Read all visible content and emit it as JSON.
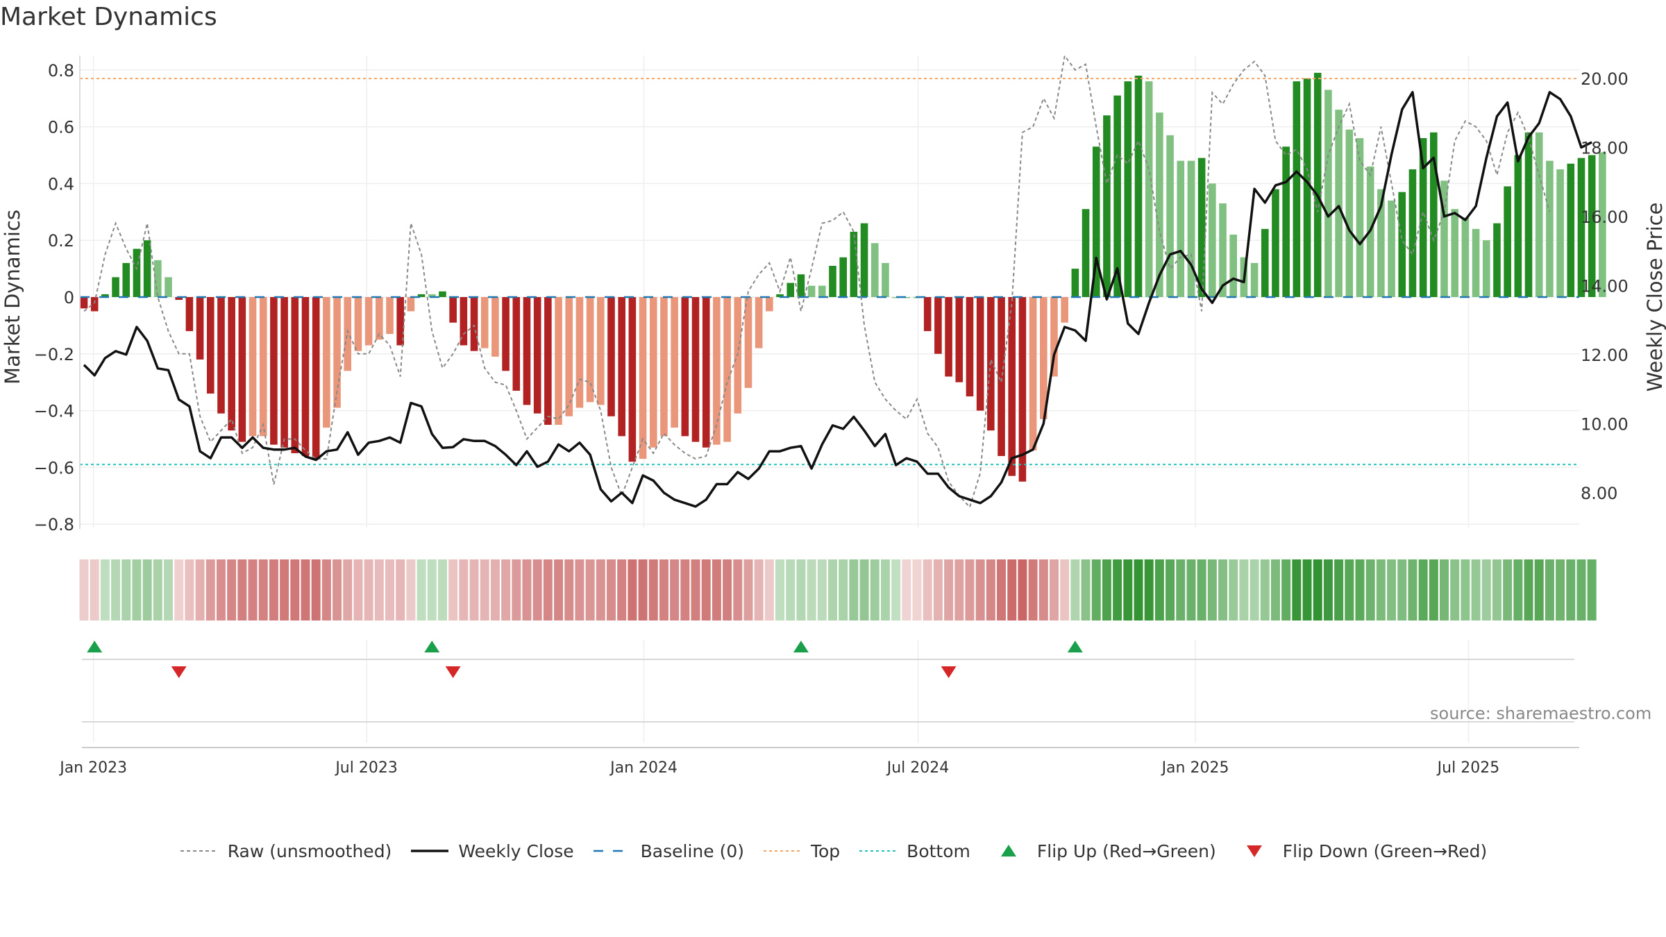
{
  "title": "Market Dynamics",
  "source": "source: sharemaestro.com",
  "colors": {
    "dark_green": "#228b22",
    "light_green": "#80c080",
    "dark_red": "#b22222",
    "light_red": "#e9967a",
    "weekly_close": "#111111",
    "raw": "#888888",
    "baseline": "#1f77b4",
    "top": "#f4a460",
    "bottom": "#20c0c0",
    "flip_up": "#1aa04a",
    "flip_down": "#d62728",
    "grid": "#eeeeee"
  },
  "legend": [
    {
      "label": "Raw (unsmoothed)",
      "style": "dashed-grey"
    },
    {
      "label": "Weekly Close",
      "style": "solid-black"
    },
    {
      "label": "Baseline (0)",
      "style": "dashed-blue"
    },
    {
      "label": "Top",
      "style": "dotted-orange"
    },
    {
      "label": "Bottom",
      "style": "dotted-cyan"
    },
    {
      "label": "Flip Up (Red→Green)",
      "style": "triangle-up-green"
    },
    {
      "label": "Flip Down (Green→Red)",
      "style": "triangle-down-red"
    }
  ],
  "chart_data": {
    "type": "bar",
    "title": "Market Dynamics",
    "ylabel": "Market Dynamics",
    "y2label": "Weekly Close Price",
    "ylim": [
      -0.92,
      0.85
    ],
    "y2lim": [
      6.7,
      20.6
    ],
    "yticks": [
      "0.8",
      "0.6",
      "0.4",
      "0.2",
      "0",
      "−0.2",
      "−0.4",
      "−0.6",
      "−0.8"
    ],
    "y2ticks": [
      "20.00",
      "18.00",
      "16.00",
      "14.00",
      "12.00",
      "10.00",
      "8.00"
    ],
    "xticks": [
      {
        "label": "Jan 2023",
        "week": 0.9
      },
      {
        "label": "Jul 2023",
        "week": 26.8
      },
      {
        "label": "Jan 2024",
        "week": 53.1
      },
      {
        "label": "Jul 2024",
        "week": 79.1
      },
      {
        "label": "Jan 2025",
        "week": 105.4
      },
      {
        "label": "Jul 2025",
        "week": 131.3
      }
    ],
    "top_level": 0.77,
    "bottom_level": -0.59,
    "baseline": 0,
    "grid": true,
    "legend_position": "bottom",
    "bar_shades_note": "dark = momentum strengthening, light = weakening",
    "values": [
      -0.04,
      -0.05,
      0.01,
      0.07,
      0.12,
      0.17,
      0.2,
      0.13,
      0.07,
      -0.01,
      -0.12,
      -0.22,
      -0.34,
      -0.41,
      -0.47,
      -0.51,
      -0.49,
      -0.49,
      -0.52,
      -0.53,
      -0.55,
      -0.56,
      -0.57,
      -0.46,
      -0.39,
      -0.26,
      -0.19,
      -0.17,
      -0.15,
      -0.13,
      -0.17,
      -0.05,
      0.01,
      0.01,
      0.02,
      -0.09,
      -0.17,
      -0.19,
      -0.18,
      -0.21,
      -0.26,
      -0.33,
      -0.38,
      -0.41,
      -0.45,
      -0.45,
      -0.42,
      -0.39,
      -0.37,
      -0.38,
      -0.42,
      -0.49,
      -0.58,
      -0.57,
      -0.53,
      -0.49,
      -0.46,
      -0.49,
      -0.51,
      -0.53,
      -0.52,
      -0.51,
      -0.41,
      -0.32,
      -0.18,
      -0.05,
      0.01,
      0.05,
      0.08,
      0.04,
      0.04,
      0.11,
      0.14,
      0.23,
      0.26,
      0.19,
      0.12,
      0,
      0,
      0,
      -0.12,
      -0.2,
      -0.28,
      -0.3,
      -0.35,
      -0.4,
      -0.47,
      -0.56,
      -0.63,
      -0.65,
      -0.54,
      -0.43,
      -0.28,
      -0.09,
      0.1,
      0.31,
      0.53,
      0.64,
      0.71,
      0.76,
      0.78,
      0.76,
      0.65,
      0.57,
      0.48,
      0.48,
      0.49,
      0.4,
      0.33,
      0.22,
      0.14,
      0.12,
      0.24,
      0.38,
      0.53,
      0.76,
      0.77,
      0.79,
      0.73,
      0.66,
      0.59,
      0.56,
      0.46,
      0.38,
      0.34,
      0.37,
      0.45,
      0.56,
      0.58,
      0.41,
      0.31,
      0.28,
      0.24,
      0.2,
      0.26,
      0.39,
      0.5,
      0.58,
      0.58,
      0.48,
      0.45,
      0.47,
      0.49,
      0.5,
      0.51
    ],
    "shades": [
      1,
      1,
      1,
      1,
      1,
      1,
      1,
      0,
      0,
      1,
      1,
      1,
      1,
      1,
      1,
      1,
      0,
      0,
      1,
      1,
      1,
      1,
      1,
      0,
      0,
      0,
      0,
      0,
      0,
      0,
      1,
      0,
      1,
      0,
      1,
      1,
      1,
      1,
      0,
      0,
      1,
      1,
      1,
      1,
      1,
      0,
      0,
      0,
      0,
      0,
      1,
      1,
      1,
      0,
      0,
      0,
      0,
      1,
      1,
      1,
      0,
      0,
      0,
      0,
      0,
      0,
      1,
      1,
      1,
      0,
      0,
      1,
      1,
      1,
      1,
      0,
      0,
      0,
      0,
      0,
      1,
      1,
      1,
      1,
      1,
      1,
      1,
      1,
      1,
      1,
      0,
      0,
      0,
      0,
      1,
      1,
      1,
      1,
      1,
      1,
      1,
      0,
      0,
      0,
      0,
      0,
      1,
      0,
      0,
      0,
      0,
      0,
      1,
      1,
      1,
      1,
      1,
      1,
      0,
      0,
      0,
      0,
      0,
      0,
      0,
      1,
      1,
      1,
      1,
      0,
      0,
      0,
      0,
      0,
      1,
      1,
      1,
      1,
      0,
      0,
      0,
      1,
      1,
      1
    ],
    "weekly_close": [
      11.7,
      11.4,
      11.9,
      12.1,
      12.0,
      12.8,
      12.4,
      11.6,
      11.55,
      10.7,
      10.5,
      9.2,
      9.0,
      9.6,
      9.6,
      9.3,
      9.6,
      9.3,
      9.25,
      9.25,
      9.3,
      9.05,
      8.95,
      9.2,
      9.25,
      9.75,
      9.1,
      9.45,
      9.5,
      9.6,
      9.45,
      10.6,
      10.5,
      9.7,
      9.3,
      9.32,
      9.55,
      9.5,
      9.5,
      9.35,
      9.1,
      8.8,
      9.2,
      8.75,
      8.9,
      9.4,
      9.2,
      9.45,
      9.1,
      8.1,
      7.75,
      8.0,
      7.7,
      8.5,
      8.35,
      8.0,
      7.8,
      7.7,
      7.6,
      7.8,
      8.25,
      8.25,
      8.6,
      8.4,
      8.7,
      9.2,
      9.2,
      9.3,
      9.35,
      8.7,
      9.4,
      9.95,
      9.85,
      10.2,
      9.8,
      9.35,
      9.7,
      8.8,
      9.0,
      8.9,
      8.55,
      8.55,
      8.15,
      7.9,
      7.8,
      7.7,
      7.9,
      8.3,
      9.0,
      9.1,
      9.25,
      10.0,
      12.0,
      12.8,
      12.7,
      12.4,
      14.8,
      13.6,
      14.5,
      12.9,
      12.6,
      13.5,
      14.3,
      14.9,
      15.0,
      14.6,
      13.9,
      13.5,
      14.0,
      14.2,
      14.1,
      16.8,
      16.4,
      16.9,
      17.0,
      17.3,
      17.0,
      16.6,
      16.0,
      16.3,
      15.6,
      15.2,
      15.6,
      16.3,
      17.8,
      19.1,
      19.6,
      17.4,
      17.7,
      16.0,
      16.1,
      15.9,
      16.3,
      17.7,
      18.9,
      19.3,
      17.6,
      18.3,
      18.7,
      19.6,
      19.4,
      18.9,
      18.0,
      18.15
    ],
    "raw": [
      -0.05,
      -0.02,
      0.15,
      0.26,
      0.17,
      0.1,
      0.26,
      0.0,
      -0.12,
      -0.2,
      -0.2,
      -0.42,
      -0.51,
      -0.47,
      -0.43,
      -0.55,
      -0.53,
      -0.45,
      -0.66,
      -0.5,
      -0.5,
      -0.54,
      -0.57,
      -0.57,
      -0.33,
      -0.12,
      -0.2,
      -0.2,
      -0.13,
      -0.17,
      -0.28,
      0.26,
      0.15,
      -0.12,
      -0.25,
      -0.2,
      -0.13,
      -0.1,
      -0.25,
      -0.3,
      -0.31,
      -0.4,
      -0.5,
      -0.46,
      -0.42,
      -0.43,
      -0.38,
      -0.29,
      -0.3,
      -0.4,
      -0.6,
      -0.7,
      -0.6,
      -0.5,
      -0.55,
      -0.48,
      -0.52,
      -0.55,
      -0.57,
      -0.56,
      -0.45,
      -0.3,
      -0.2,
      0.02,
      0.08,
      0.12,
      0.02,
      0.14,
      -0.05,
      0.1,
      0.26,
      0.27,
      0.3,
      0.23,
      -0.1,
      -0.3,
      -0.36,
      -0.4,
      -0.43,
      -0.36,
      -0.48,
      -0.53,
      -0.65,
      -0.7,
      -0.74,
      -0.62,
      -0.22,
      -0.3,
      -0.02,
      0.58,
      0.6,
      0.7,
      0.63,
      0.85,
      0.8,
      0.82,
      0.6,
      0.4,
      0.5,
      0.47,
      0.55,
      0.45,
      0.23,
      0.1,
      0.14,
      0.15,
      -0.05,
      0.72,
      0.68,
      0.75,
      0.8,
      0.83,
      0.78,
      0.55,
      0.5,
      0.52,
      0.45,
      0.3,
      0.5,
      0.6,
      0.68,
      0.48,
      0.43,
      0.6,
      0.4,
      0.2,
      0.15,
      0.3,
      0.2,
      0.3,
      0.55,
      0.62,
      0.6,
      0.55,
      0.43,
      0.58,
      0.65,
      0.56,
      0.43,
      0.3
    ],
    "flips_up_week": [
      1,
      33,
      68,
      94
    ],
    "flips_down_week": [
      9,
      35,
      82
    ],
    "regime": [
      0,
      0,
      1,
      1,
      1,
      1,
      1,
      1,
      1,
      2,
      2,
      2,
      2,
      2,
      2,
      2,
      2,
      2,
      2,
      2,
      2,
      2,
      2,
      2,
      2,
      2,
      2,
      2,
      2,
      2,
      2,
      2,
      1,
      1,
      1,
      2,
      2,
      2,
      2,
      2,
      2,
      2,
      2,
      2,
      2,
      2,
      2,
      2,
      2,
      2,
      2,
      2,
      2,
      2,
      2,
      2,
      2,
      2,
      2,
      2,
      2,
      2,
      2,
      2,
      2,
      2,
      1,
      1,
      1,
      1,
      1,
      1,
      1,
      1,
      1,
      1,
      1,
      1,
      2,
      2,
      2,
      2,
      2,
      2,
      2,
      2,
      2,
      2,
      2,
      2,
      2,
      2,
      2,
      2,
      1,
      1,
      1,
      1,
      1,
      1,
      1,
      1,
      1,
      1,
      1,
      1,
      1,
      1,
      1,
      1,
      1,
      1,
      1,
      1,
      1,
      1,
      1,
      1,
      1,
      1,
      1,
      1,
      1,
      1,
      1,
      1,
      1,
      1,
      1,
      1,
      1,
      1,
      1,
      1,
      1,
      1,
      1,
      1,
      1,
      1,
      1,
      1,
      1,
      1
    ]
  }
}
